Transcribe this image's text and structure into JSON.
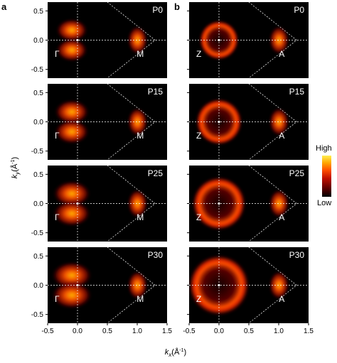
{
  "panel_labels": {
    "a": "a",
    "b": "b"
  },
  "columns": {
    "a": {
      "points": {
        "center": "Γ",
        "edge": "M"
      }
    },
    "b": {
      "points": {
        "center": "Z",
        "edge": "A"
      }
    }
  },
  "rows": [
    {
      "label": "P0"
    },
    {
      "label": "P15"
    },
    {
      "label": "P25"
    },
    {
      "label": "P30"
    }
  ],
  "axes": {
    "y_label": "k",
    "y_sub": "y",
    "y_unit": "(Å",
    "y_unit_sup": "-1",
    "y_unit_close": ")",
    "x_label": "k",
    "x_sub": "x",
    "x_unit": "(Å",
    "x_unit_sup": "-1",
    "x_unit_close": ")",
    "y_ticks": [
      "0.5",
      "0.0",
      "-0.5"
    ],
    "y_tick_values": [
      0.5,
      0.0,
      -0.5
    ],
    "x_ticks": [
      "-0.5",
      "0.0",
      "0.5",
      "1.0",
      "1.5"
    ],
    "x_tick_values": [
      -0.5,
      0.0,
      0.5,
      1.0,
      1.5
    ],
    "x_range": [
      -0.5,
      1.5
    ],
    "y_range": [
      -0.65,
      0.65
    ]
  },
  "colorbar": {
    "high": "High",
    "low": "Low",
    "colors": [
      "#000000",
      "#3a0000",
      "#8b0000",
      "#d01800",
      "#ff5a00",
      "#ffa500",
      "#ffe000",
      "#ffffaa"
    ]
  }
}
